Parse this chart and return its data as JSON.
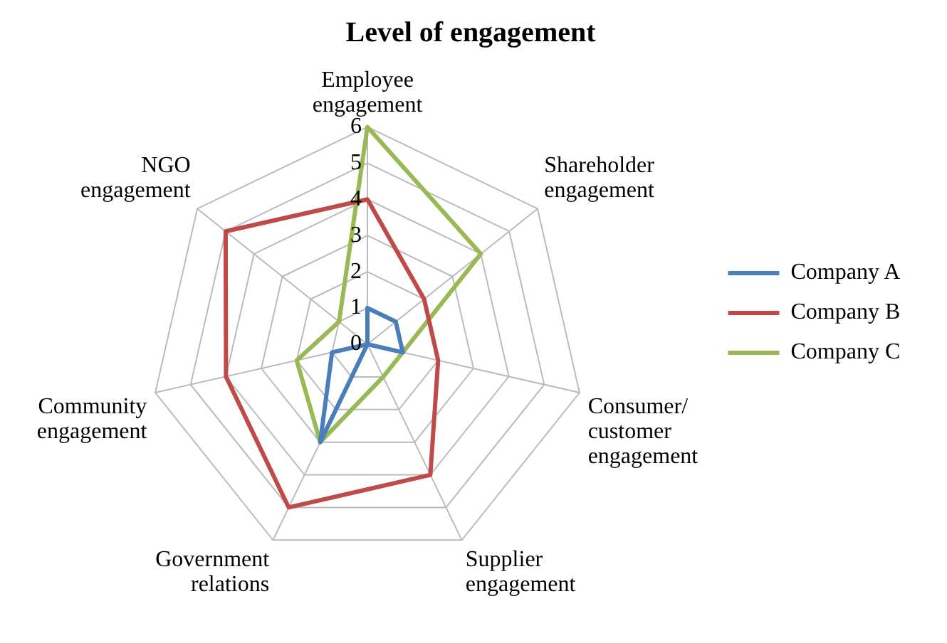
{
  "chart_data": {
    "type": "radar",
    "title": "Level of engagement",
    "categories": [
      "Employee engagement",
      "Shareholder engagement",
      "Consumer/ customer engagement",
      "Supplier engagement",
      "Government relations",
      "Community engagement",
      "NGO engagement"
    ],
    "series": [
      {
        "name": "Company A",
        "color": "#4a7ebb",
        "values": [
          1,
          1,
          1,
          0,
          3,
          1,
          0
        ]
      },
      {
        "name": "Company B",
        "color": "#be4b48",
        "values": [
          4,
          2,
          2,
          4,
          5,
          4,
          5
        ]
      },
      {
        "name": "Company C",
        "color": "#98b954",
        "values": [
          6,
          4,
          1,
          1,
          3,
          2,
          1
        ]
      }
    ],
    "ylim": [
      0,
      6
    ],
    "yticks": [
      0,
      1,
      2,
      3,
      4,
      5,
      6
    ],
    "grid": true,
    "legend": "right",
    "marker": "none"
  }
}
